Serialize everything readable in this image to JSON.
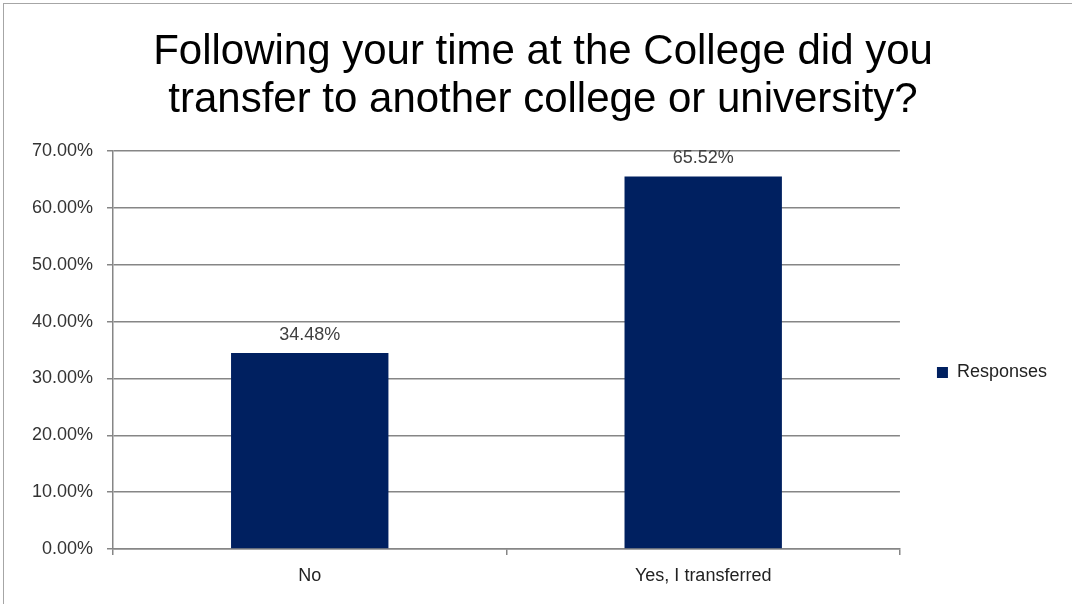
{
  "chart_data": {
    "type": "bar",
    "title": "Following your time at the College did you transfer to another college or university?",
    "categories": [
      "No",
      "Yes, I transferred"
    ],
    "series": [
      {
        "name": "Responses",
        "color": "#002060",
        "values": [
          34.48,
          65.52
        ],
        "value_labels": [
          "34.48%",
          "65.52%"
        ]
      }
    ],
    "ylim": [
      0,
      70
    ],
    "yticks": [
      {
        "value": 0,
        "label": "0.00%"
      },
      {
        "value": 10,
        "label": "10.00%"
      },
      {
        "value": 20,
        "label": "20.00%"
      },
      {
        "value": 30,
        "label": "30.00%"
      },
      {
        "value": 40,
        "label": "40.00%"
      },
      {
        "value": 50,
        "label": "50.00%"
      },
      {
        "value": 60,
        "label": "60.00%"
      },
      {
        "value": 70,
        "label": "70.00%"
      }
    ],
    "grid": "y",
    "legend": "right"
  }
}
